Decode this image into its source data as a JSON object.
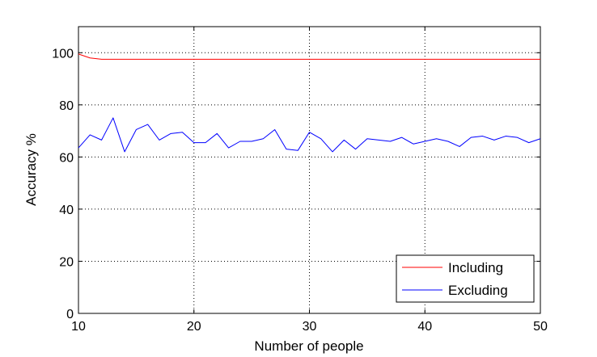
{
  "chart_data": {
    "type": "line",
    "title": "",
    "xlabel": "Number of people",
    "ylabel": "Accuracy %",
    "xlim": [
      10,
      50
    ],
    "ylim": [
      0,
      110
    ],
    "xticks": [
      10,
      20,
      30,
      40,
      50
    ],
    "yticks": [
      0,
      20,
      40,
      60,
      80,
      100
    ],
    "grid": true,
    "legend_position": "bottom-right",
    "x": [
      10,
      11,
      12,
      13,
      14,
      15,
      16,
      17,
      18,
      19,
      20,
      21,
      22,
      23,
      24,
      25,
      26,
      27,
      28,
      29,
      30,
      31,
      32,
      33,
      34,
      35,
      36,
      37,
      38,
      39,
      40,
      41,
      42,
      43,
      44,
      45,
      46,
      47,
      48,
      49,
      50
    ],
    "series": [
      {
        "name": "Including",
        "color": "#ff0000",
        "values": [
          99.5,
          98,
          97.5,
          97.5,
          97.5,
          97.5,
          97.5,
          97.5,
          97.5,
          97.5,
          97.5,
          97.5,
          97.5,
          97.5,
          97.5,
          97.5,
          97.5,
          97.5,
          97.5,
          97.5,
          97.5,
          97.5,
          97.5,
          97.5,
          97.5,
          97.5,
          97.5,
          97.5,
          97.5,
          97.5,
          97.5,
          97.5,
          97.5,
          97.5,
          97.5,
          97.5,
          97.5,
          97.5,
          97.5,
          97.5,
          97.5
        ]
      },
      {
        "name": "Excluding",
        "color": "#0000ff",
        "values": [
          63.5,
          68.5,
          66.5,
          75,
          62,
          70.5,
          72.5,
          66.5,
          69,
          69.5,
          65.5,
          65.5,
          69,
          63.5,
          66,
          66,
          67,
          70.5,
          63,
          62.5,
          69.5,
          67,
          62,
          66.5,
          63,
          67,
          66.5,
          66,
          67.5,
          65,
          66,
          67,
          66,
          64,
          67.5,
          68,
          66.5,
          68,
          67.5,
          65.5,
          67
        ]
      }
    ]
  }
}
